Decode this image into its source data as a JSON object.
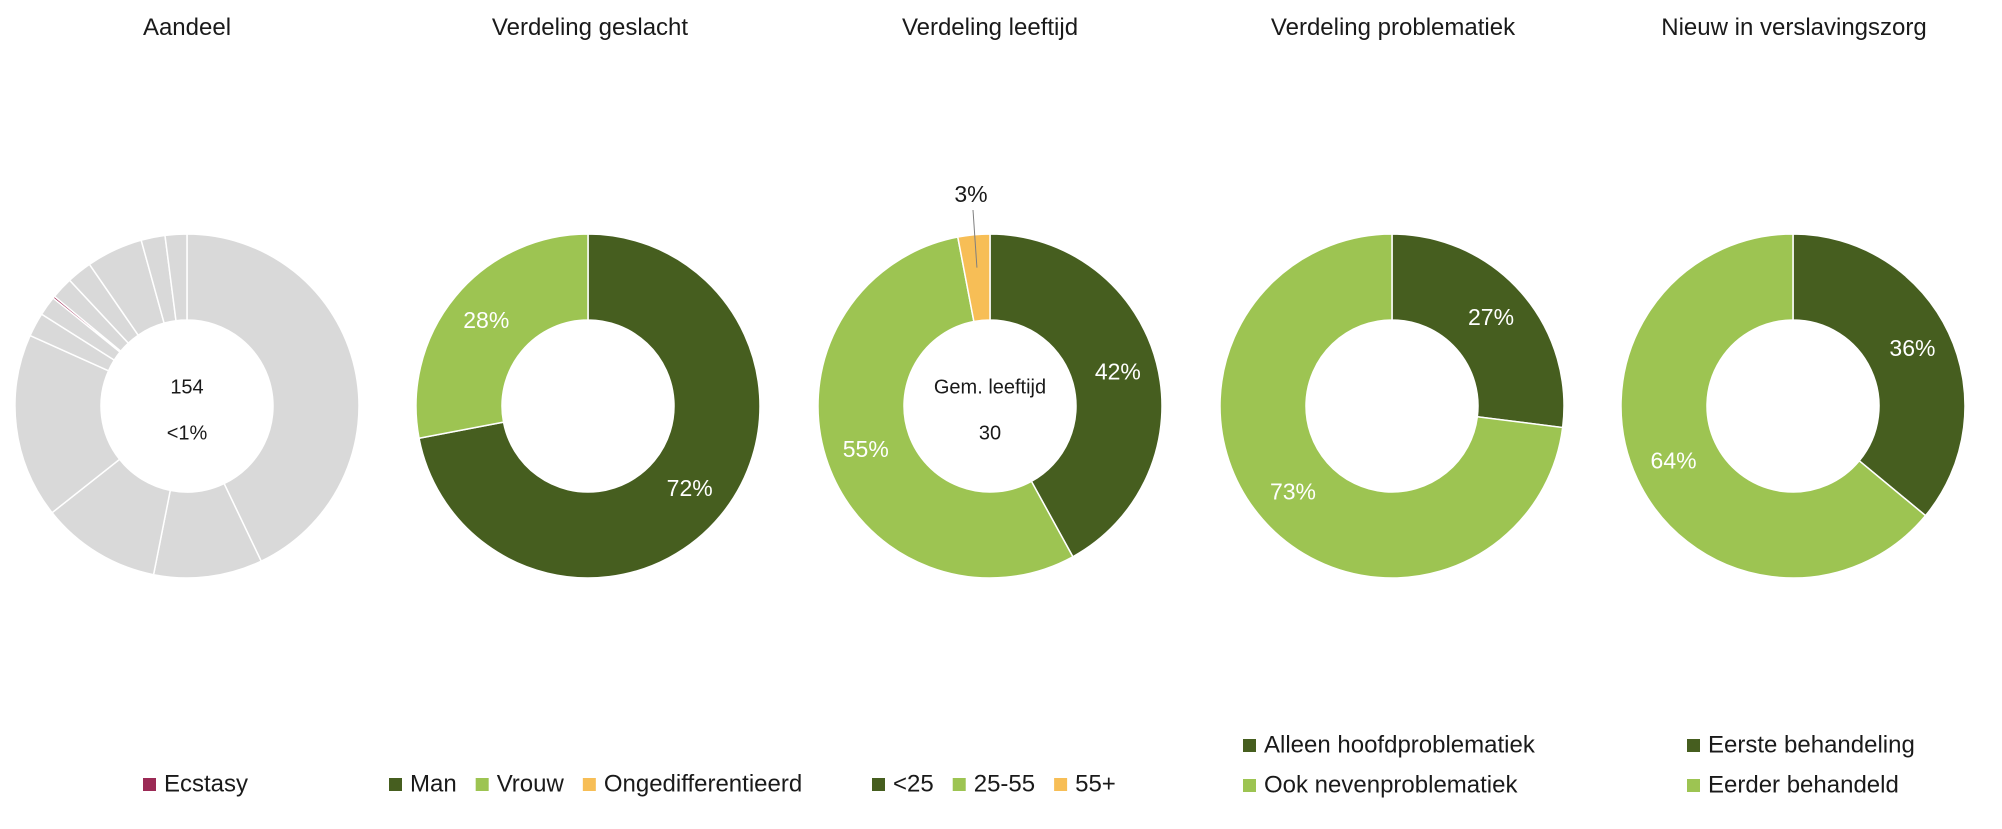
{
  "colors": {
    "dark_green": "#465E1F",
    "light_green": "#9DC452",
    "orange": "#F7BE56",
    "grey": "#D9D9D9",
    "ecstasy": "#9B2A55"
  },
  "chart_data": [
    {
      "type": "pie",
      "title": "Aandeel",
      "center_text": [
        "154",
        "<1%"
      ],
      "slices": [
        {
          "value": 0.42,
          "color": "#D9D9D9"
        },
        {
          "value": 0.1,
          "color": "#D9D9D9"
        },
        {
          "value": 0.11,
          "color": "#D9D9D9"
        },
        {
          "value": 0.17,
          "color": "#D9D9D9"
        },
        {
          "value": 0.022,
          "color": "#D9D9D9"
        },
        {
          "value": 0.018,
          "color": "#D9D9D9"
        },
        {
          "value": 0.002,
          "color": "#9B2A55"
        },
        {
          "value": 0.02,
          "color": "#D9D9D9"
        },
        {
          "value": 0.023,
          "color": "#D9D9D9"
        },
        {
          "value": 0.052,
          "color": "#D9D9D9"
        },
        {
          "value": 0.022,
          "color": "#D9D9D9"
        },
        {
          "value": 0.02,
          "color": "#D9D9D9"
        }
      ],
      "legend": [
        {
          "label": "Ecstasy",
          "color": "#9B2A55"
        }
      ]
    },
    {
      "type": "pie",
      "title": "Verdeling geslacht",
      "slices": [
        {
          "name": "Man",
          "value": 72,
          "label": "72%",
          "color": "#465E1F"
        },
        {
          "name": "Vrouw",
          "value": 28,
          "label": "28%",
          "color": "#9DC452"
        }
      ],
      "legend": [
        {
          "label": "Man",
          "color": "#465E1F"
        },
        {
          "label": "Vrouw",
          "color": "#9DC452"
        },
        {
          "label": "Ongedifferentieerd",
          "color": "#F7BE56"
        }
      ]
    },
    {
      "type": "pie",
      "title": "Verdeling leeftijd",
      "center_text": [
        "Gem. leeftijd",
        "30"
      ],
      "slices": [
        {
          "name": "<25",
          "value": 42,
          "label": "42%",
          "color": "#465E1F"
        },
        {
          "name": "25-55",
          "value": 55,
          "label": "55%",
          "color": "#9DC452"
        },
        {
          "name": "55+",
          "value": 3,
          "label": "3%",
          "color": "#F7BE56",
          "callout": true
        }
      ],
      "legend": [
        {
          "label": "<25",
          "color": "#465E1F"
        },
        {
          "label": "25-55",
          "color": "#9DC452"
        },
        {
          "label": "55+",
          "color": "#F7BE56"
        }
      ]
    },
    {
      "type": "pie",
      "title": "Verdeling problematiek",
      "slices": [
        {
          "name": "Alleen hoofdproblematiek",
          "value": 27,
          "label": "27%",
          "color": "#465E1F"
        },
        {
          "name": "Ook nevenproblematiek",
          "value": 73,
          "label": "73%",
          "color": "#9DC452"
        }
      ],
      "legend": [
        {
          "label": "Alleen hoofdproblematiek",
          "color": "#465E1F"
        },
        {
          "label": "Ook nevenproblematiek",
          "color": "#9DC452"
        }
      ]
    },
    {
      "type": "pie",
      "title": "Nieuw in verslavingszorg",
      "slices": [
        {
          "name": "Eerste behandeling",
          "value": 36,
          "label": "36%",
          "color": "#465E1F"
        },
        {
          "name": "Eerder behandeld",
          "value": 64,
          "label": "64%",
          "color": "#9DC452"
        }
      ],
      "legend": [
        {
          "label": "Eerste behandeling",
          "color": "#465E1F"
        },
        {
          "label": "Eerder behandeld",
          "color": "#9DC452"
        }
      ]
    }
  ]
}
